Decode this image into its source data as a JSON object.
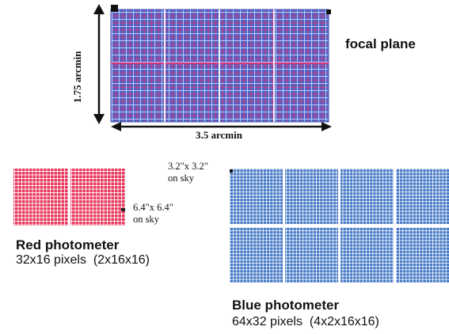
{
  "focal_plane": {
    "title": "focal plane",
    "width_label": "3.5 arcmin",
    "height_label": "1.75 arcmin"
  },
  "red_photometer": {
    "title": "Red photometer",
    "description": "32x16 pixels  (2x16x16)",
    "pixel_size_line1": "6.4\"x 6.4\"",
    "pixel_size_line2": "on sky",
    "color": "#e8365a"
  },
  "blue_photometer": {
    "title": "Blue photometer",
    "description": "64x32 pixels  (4x2x16x16)",
    "pixel_size_line1": "3.2\"x 3.2\"",
    "pixel_size_line2": "on sky",
    "color": "#3d74c4"
  },
  "focal_plane_colors": {
    "base": "#4a63c6",
    "grid_red": "#d8367a",
    "grid_light": "#c9d6ff"
  }
}
